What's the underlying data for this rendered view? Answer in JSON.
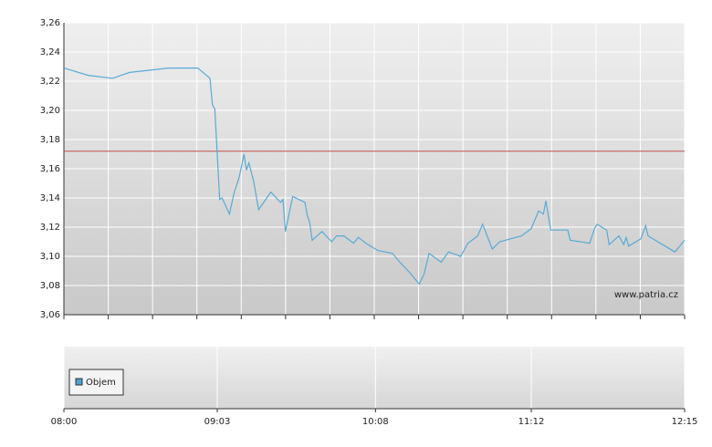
{
  "chart_data": {
    "type": "line",
    "watermark": "www.patria.cz",
    "x": [
      "08:00",
      "08:10",
      "08:20",
      "08:27",
      "08:43",
      "08:55",
      "09:00",
      "09:01",
      "09:02",
      "09:04",
      "09:05",
      "09:08",
      "09:10",
      "09:12",
      "09:14",
      "09:15",
      "09:16",
      "09:18",
      "09:20",
      "09:25",
      "09:29",
      "09:30",
      "09:31",
      "09:34",
      "09:39",
      "09:40",
      "09:41",
      "09:42",
      "09:46",
      "09:50",
      "09:52",
      "09:55",
      "09:59",
      "10:01",
      "10:04",
      "10:09",
      "10:15",
      "10:18",
      "10:22",
      "10:26",
      "10:28",
      "10:30",
      "10:35",
      "10:38",
      "10:43",
      "10:46",
      "10:50",
      "10:52",
      "10:56",
      "10:59",
      "11:08",
      "11:12",
      "11:15",
      "11:17",
      "11:18",
      "11:20",
      "11:27",
      "11:28",
      "11:36",
      "11:38",
      "11:39",
      "11:43",
      "11:44",
      "11:48",
      "11:50",
      "11:51",
      "11:52",
      "11:57",
      "11:59",
      "12:00",
      "12:07",
      "12:11",
      "12:15"
    ],
    "series": [
      {
        "color": "#5aaad4",
        "values": [
          3.229,
          3.224,
          3.222,
          3.226,
          3.229,
          3.229,
          3.222,
          3.204,
          3.201,
          3.139,
          3.14,
          3.129,
          3.144,
          3.154,
          3.17,
          3.159,
          3.164,
          3.151,
          3.132,
          3.144,
          3.137,
          3.139,
          3.117,
          3.141,
          3.137,
          3.128,
          3.123,
          3.111,
          3.117,
          3.11,
          3.114,
          3.114,
          3.109,
          3.113,
          3.109,
          3.104,
          3.102,
          3.096,
          3.089,
          3.081,
          3.088,
          3.102,
          3.096,
          3.103,
          3.1,
          3.109,
          3.114,
          3.122,
          3.105,
          3.11,
          3.114,
          3.119,
          3.131,
          3.129,
          3.138,
          3.118,
          3.118,
          3.111,
          3.109,
          3.119,
          3.122,
          3.118,
          3.108,
          3.114,
          3.108,
          3.113,
          3.107,
          3.112,
          3.121,
          3.114,
          3.107,
          3.103,
          3.111
        ]
      }
    ],
    "reference_line": {
      "value": 3.172,
      "color": "#c0504d"
    },
    "volume": {
      "name": "Objem",
      "color": "#4aa3d3"
    },
    "xlim": [
      "08:00",
      "12:15"
    ],
    "xticks": [
      "08:00",
      "09:03",
      "10:08",
      "11:12",
      "12:15"
    ],
    "ylim": [
      3.06,
      3.26
    ],
    "yticks": [
      {
        "value": 3.06,
        "label": "3,06"
      },
      {
        "value": 3.08,
        "label": "3,08"
      },
      {
        "value": 3.1,
        "label": "3,10"
      },
      {
        "value": 3.12,
        "label": "3,12"
      },
      {
        "value": 3.14,
        "label": "3,14"
      },
      {
        "value": 3.16,
        "label": "3,16"
      },
      {
        "value": 3.18,
        "label": "3,18"
      },
      {
        "value": 3.2,
        "label": "3,20"
      },
      {
        "value": 3.22,
        "label": "3,22"
      },
      {
        "value": 3.24,
        "label": "3,24"
      },
      {
        "value": 3.26,
        "label": "3,26"
      }
    ],
    "grid": true
  }
}
